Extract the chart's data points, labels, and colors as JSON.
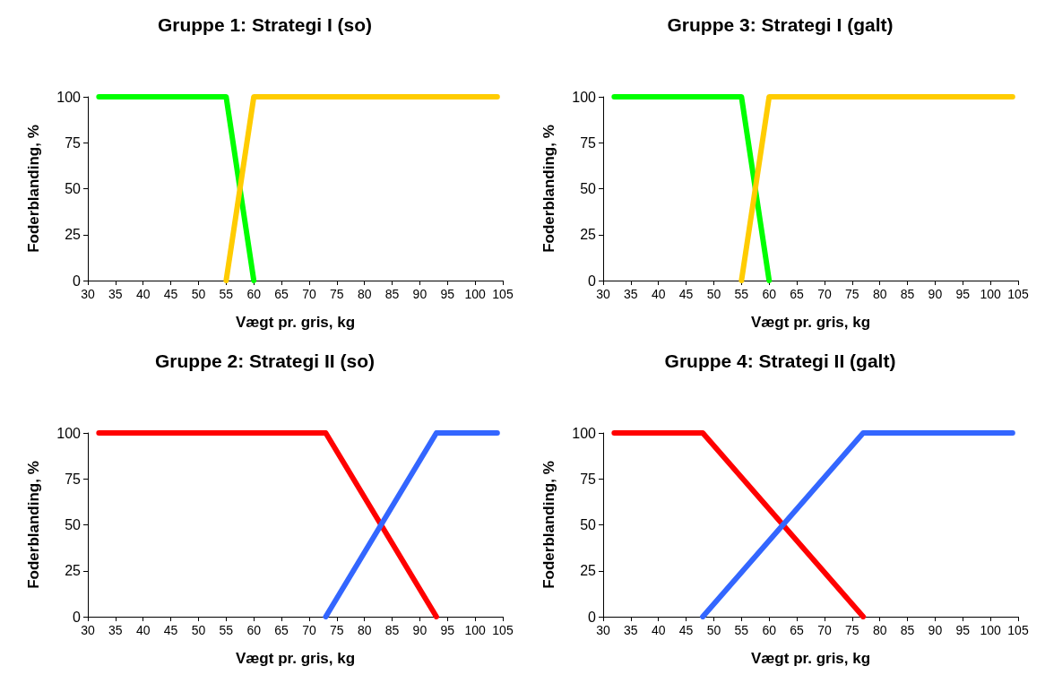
{
  "chart_data": [
    {
      "type": "line",
      "title": "Gruppe 1: Strategi I (so)",
      "xlabel": "Vægt pr. gris, kg",
      "ylabel": "Foderblanding, %",
      "xlim": [
        30,
        105
      ],
      "xticks": [
        30,
        35,
        40,
        45,
        50,
        55,
        60,
        65,
        70,
        75,
        80,
        85,
        90,
        95,
        100,
        105
      ],
      "ylim": [
        0,
        100
      ],
      "yticks": [
        0,
        25,
        50,
        75,
        100
      ],
      "grid": false,
      "marker": "none",
      "line_style": "solid",
      "series": [
        {
          "color": "#00ff00",
          "x": [
            32,
            55,
            60
          ],
          "values": [
            100,
            100,
            0
          ]
        },
        {
          "color": "#ffcc00",
          "x": [
            55,
            60,
            104
          ],
          "values": [
            0,
            100,
            100
          ]
        }
      ]
    },
    {
      "type": "line",
      "title": "Gruppe 3: Strategi I (galt)",
      "xlabel": "Vægt pr. gris, kg",
      "ylabel": "Foderblanding, %",
      "xlim": [
        30,
        105
      ],
      "xticks": [
        30,
        35,
        40,
        45,
        50,
        55,
        60,
        65,
        70,
        75,
        80,
        85,
        90,
        95,
        100,
        105
      ],
      "ylim": [
        0,
        100
      ],
      "yticks": [
        0,
        25,
        50,
        75,
        100
      ],
      "grid": false,
      "marker": "none",
      "line_style": "solid",
      "series": [
        {
          "color": "#00ff00",
          "x": [
            32,
            55,
            60
          ],
          "values": [
            100,
            100,
            0
          ]
        },
        {
          "color": "#ffcc00",
          "x": [
            55,
            60,
            104
          ],
          "values": [
            0,
            100,
            100
          ]
        }
      ]
    },
    {
      "type": "line",
      "title": "Gruppe 2: Strategi II (so)",
      "xlabel": "Vægt pr. gris, kg",
      "ylabel": "Foderblanding, %",
      "xlim": [
        30,
        105
      ],
      "xticks": [
        30,
        35,
        40,
        45,
        50,
        55,
        60,
        65,
        70,
        75,
        80,
        85,
        90,
        95,
        100,
        105
      ],
      "ylim": [
        0,
        100
      ],
      "yticks": [
        0,
        25,
        50,
        75,
        100
      ],
      "grid": false,
      "marker": "none",
      "line_style": "solid",
      "series": [
        {
          "color": "#ff0000",
          "x": [
            32,
            73,
            93
          ],
          "values": [
            100,
            100,
            0
          ]
        },
        {
          "color": "#3366ff",
          "x": [
            73,
            93,
            104
          ],
          "values": [
            0,
            100,
            100
          ]
        }
      ]
    },
    {
      "type": "line",
      "title": "Gruppe 4: Strategi II (galt)",
      "xlabel": "Vægt pr. gris, kg",
      "ylabel": "Foderblanding, %",
      "xlim": [
        30,
        105
      ],
      "xticks": [
        30,
        35,
        40,
        45,
        50,
        55,
        60,
        65,
        70,
        75,
        80,
        85,
        90,
        95,
        100,
        105
      ],
      "ylim": [
        0,
        100
      ],
      "yticks": [
        0,
        25,
        50,
        75,
        100
      ],
      "grid": false,
      "marker": "none",
      "line_style": "solid",
      "series": [
        {
          "color": "#ff0000",
          "x": [
            32,
            48,
            77
          ],
          "values": [
            100,
            100,
            0
          ]
        },
        {
          "color": "#3366ff",
          "x": [
            48,
            77,
            104
          ],
          "values": [
            0,
            100,
            100
          ]
        }
      ]
    }
  ]
}
